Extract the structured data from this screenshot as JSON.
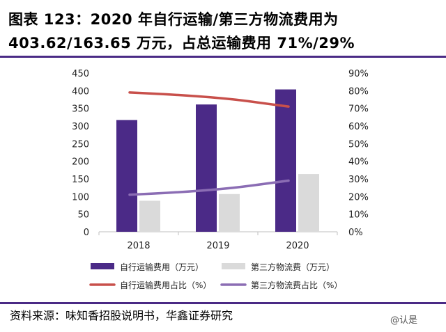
{
  "header": {
    "title_line1": "图表 123：2020 年自行运输/第三方物流费用为",
    "title_line2": "403.62/163.65 万元，占总运输费用 71%/29%"
  },
  "footer": {
    "source": "资料来源：味知香招股说明书，华鑫证券研究",
    "watermark": "@认是"
  },
  "colors": {
    "self_bar": "#4b2a87",
    "third_bar": "#dadada",
    "self_line": "#c8504b",
    "third_line": "#8b6db4",
    "rule": "#4a2a85"
  },
  "chart_data": {
    "type": "bar",
    "categories": [
      "2018",
      "2019",
      "2020"
    ],
    "ylim": [
      0,
      450
    ],
    "yticks": [
      "0",
      "50",
      "100",
      "150",
      "200",
      "250",
      "300",
      "350",
      "400",
      "450"
    ],
    "y2lim": [
      0,
      90
    ],
    "y2ticks": [
      "0%",
      "10%",
      "20%",
      "30%",
      "40%",
      "50%",
      "60%",
      "70%",
      "80%",
      "90%"
    ],
    "series": [
      {
        "name": "自行运输费用（万元）",
        "type": "bar",
        "axis": "left",
        "values": [
          317,
          361,
          403.62
        ]
      },
      {
        "name": "第三方物流费（万元）",
        "type": "bar",
        "axis": "left",
        "values": [
          88,
          107,
          163.65
        ]
      },
      {
        "name": "自行运输费用占比（%）",
        "type": "line",
        "axis": "right",
        "values": [
          79,
          77,
          71
        ]
      },
      {
        "name": "第三方物流费占比（%）",
        "type": "line",
        "axis": "right",
        "values": [
          21,
          23,
          29
        ]
      }
    ],
    "legend": "bottom"
  }
}
